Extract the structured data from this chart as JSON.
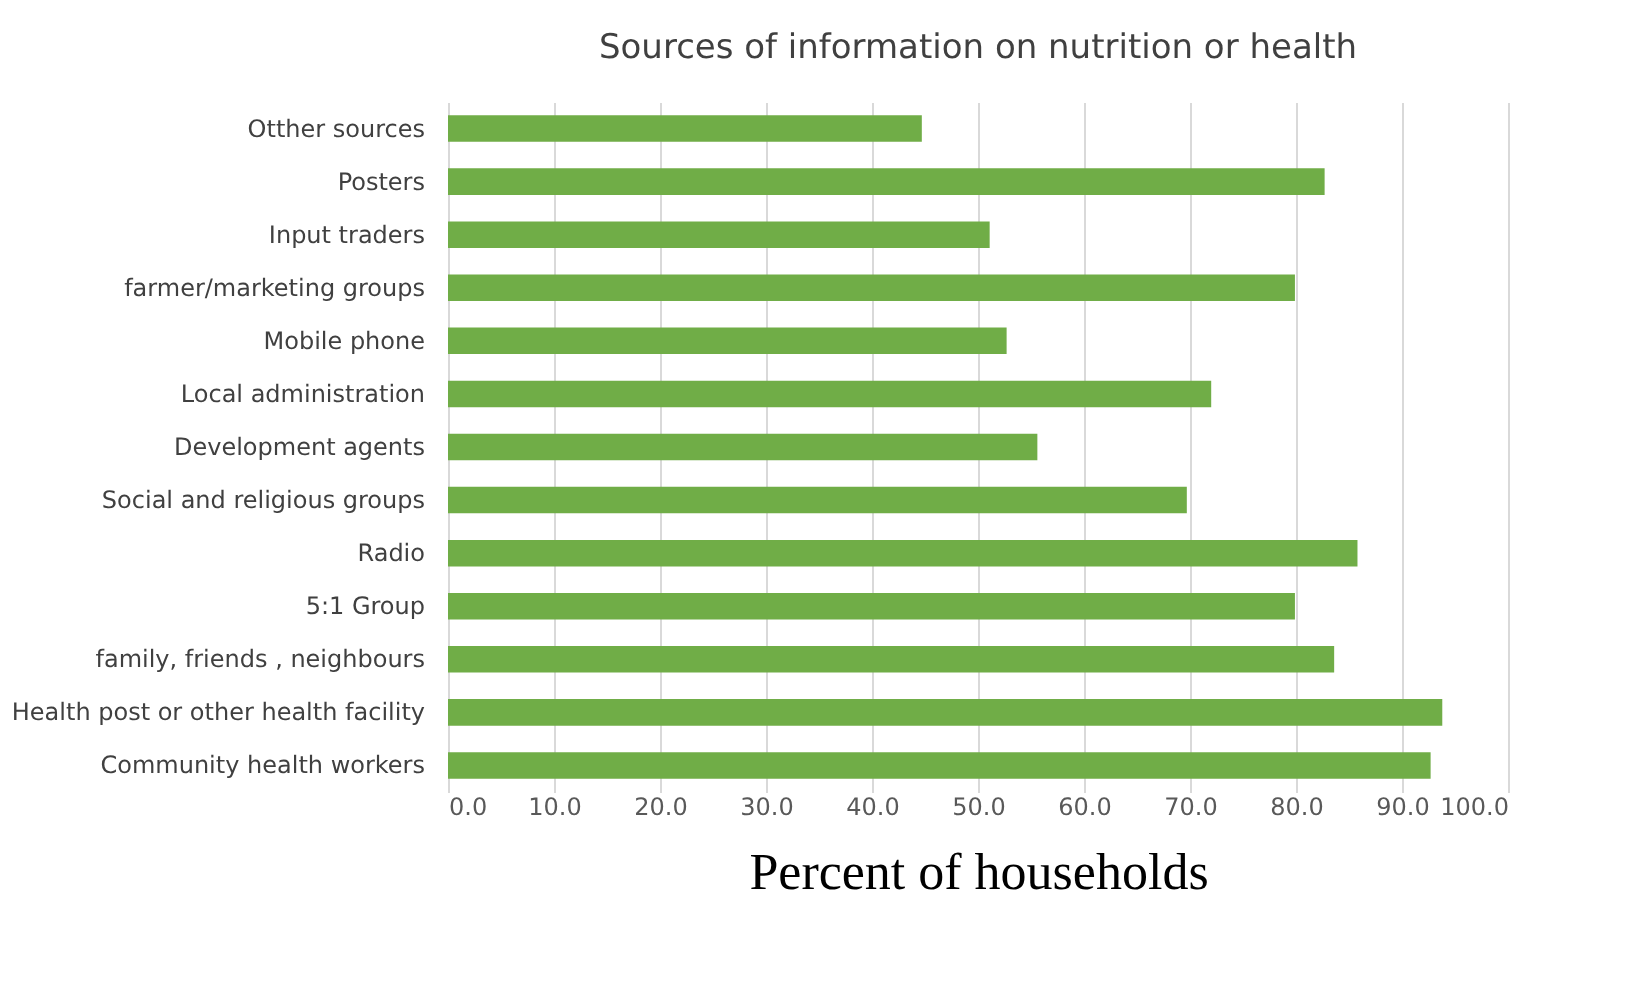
{
  "chart_data": {
    "type": "bar",
    "orientation": "horizontal",
    "title": "Sources of information on nutrition  or health",
    "xlabel": "Percent of households",
    "categories": [
      "Otther sources",
      "Posters",
      "Input traders",
      "farmer/marketing  groups",
      "Mobile phone",
      "Local administration ",
      "Development agents",
      "Social and religious groups",
      "Radio",
      "5:1 Group",
      "family, friends , neighbours",
      "Health post or other health facility",
      "Community health workers"
    ],
    "values": [
      44.7,
      82.7,
      51.1,
      79.9,
      52.7,
      72.0,
      55.6,
      69.7,
      85.8,
      79.9,
      83.6,
      93.8,
      92.7
    ],
    "color": "#70ad47",
    "xlim": [
      0,
      100
    ],
    "xticks": [
      {
        "value": 0,
        "label": "0.0"
      },
      {
        "value": 10,
        "label": "10.0"
      },
      {
        "value": 20,
        "label": "20.0"
      },
      {
        "value": 30,
        "label": "30.0"
      },
      {
        "value": 40,
        "label": "40.0"
      },
      {
        "value": 50,
        "label": "50.0"
      },
      {
        "value": 60,
        "label": "60.0"
      },
      {
        "value": 70,
        "label": "70.0"
      },
      {
        "value": 80,
        "label": "80.0"
      },
      {
        "value": 90,
        "label": "90.0"
      },
      {
        "value": 100,
        "label": "100.0"
      }
    ],
    "grid": "x"
  }
}
